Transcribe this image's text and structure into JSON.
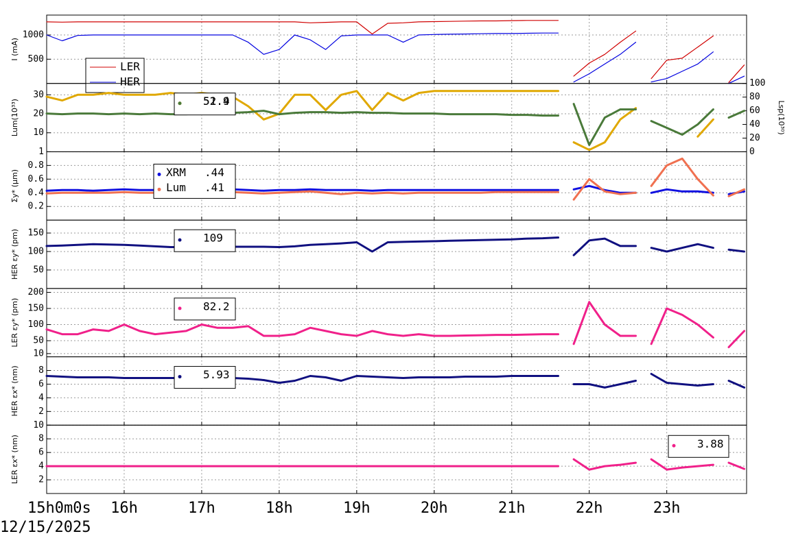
{
  "time_axis": {
    "xlim": [
      15,
      24.03
    ],
    "date": "12/15/2025",
    "xticks": [
      {
        "value": 15,
        "label": "15h0m0s"
      },
      {
        "value": 16,
        "label": "16h"
      },
      {
        "value": 17,
        "label": "17h"
      },
      {
        "value": 18,
        "label": "18h"
      },
      {
        "value": 19,
        "label": "19h"
      },
      {
        "value": 20,
        "label": "20h"
      },
      {
        "value": 21,
        "label": "21h"
      },
      {
        "value": 22,
        "label": "22h"
      },
      {
        "value": 23,
        "label": "23h"
      }
    ]
  },
  "chart_data": [
    {
      "type": "line",
      "ylabel": "I (mA)",
      "ylim": [
        0,
        1410
      ],
      "yticks": [
        500,
        1000
      ],
      "grid": true,
      "x": [
        15.0,
        15.2,
        15.4,
        15.6,
        15.8,
        16.0,
        16.2,
        16.4,
        16.6,
        16.8,
        17.0,
        17.2,
        17.4,
        17.6,
        17.8,
        18.0,
        18.2,
        18.4,
        18.6,
        18.8,
        19.0,
        19.2,
        19.4,
        19.6,
        19.8,
        20.0,
        20.2,
        20.4,
        20.6,
        20.8,
        21.0,
        21.2,
        21.4,
        21.6,
        21.7,
        21.8,
        22.0,
        22.2,
        22.4,
        22.6,
        22.7,
        22.8,
        23.0,
        23.2,
        23.4,
        23.6,
        23.7,
        23.8,
        24.0
      ],
      "series": [
        {
          "name": "LER",
          "color": "#d00000",
          "values": [
            1270,
            1265,
            1270,
            1270,
            1270,
            1270,
            1270,
            1270,
            1270,
            1270,
            1270,
            1270,
            1270,
            1270,
            1270,
            1270,
            1270,
            1250,
            1260,
            1270,
            1270,
            1020,
            1240,
            1250,
            1270,
            1275,
            1280,
            1285,
            1290,
            1290,
            1295,
            1300,
            1300,
            1300,
            null,
            150,
            420,
            600,
            850,
            1080,
            null,
            100,
            480,
            520,
            750,
            980,
            null,
            20,
            380
          ]
        },
        {
          "name": "HER",
          "color": "#0000e0",
          "values": [
            1000,
            880,
            990,
            1000,
            1000,
            1000,
            1000,
            1000,
            1000,
            1000,
            1000,
            1000,
            1000,
            850,
            600,
            700,
            1000,
            900,
            700,
            980,
            1000,
            1000,
            1000,
            850,
            1000,
            1010,
            1015,
            1020,
            1025,
            1030,
            1030,
            1035,
            1040,
            1040,
            null,
            30,
            200,
            400,
            600,
            850,
            null,
            30,
            100,
            250,
            400,
            650,
            null,
            0,
            150
          ]
        }
      ]
    },
    {
      "type": "scatter",
      "ylabel": "Lum(10³³)",
      "y2label": "Lsp(10³⁰)",
      "ylim": [
        0,
        36
      ],
      "yticks": [
        10,
        20,
        30
      ],
      "y2lim": [
        0,
        100
      ],
      "y2ticks": [
        0,
        20,
        40,
        60,
        80,
        100
      ],
      "grid": true,
      "x": [
        15.0,
        15.2,
        15.4,
        15.6,
        15.8,
        16.0,
        16.2,
        16.4,
        16.6,
        16.8,
        17.0,
        17.2,
        17.4,
        17.6,
        17.8,
        18.0,
        18.2,
        18.4,
        18.6,
        18.8,
        19.0,
        19.2,
        19.4,
        19.6,
        19.8,
        20.0,
        20.2,
        20.4,
        20.6,
        20.8,
        21.0,
        21.2,
        21.4,
        21.6,
        21.7,
        21.8,
        22.0,
        22.2,
        22.4,
        22.6,
        22.7,
        22.8,
        23.0,
        23.2,
        23.4,
        23.6,
        23.7,
        23.8,
        24.0
      ],
      "series": [
        {
          "legend_value": "52.9",
          "color": "#e0a800",
          "values": [
            29,
            27,
            30,
            30,
            31,
            30,
            30,
            30,
            31,
            30,
            31,
            30,
            29,
            24,
            17,
            20,
            30,
            30,
            22,
            30,
            32,
            22,
            31,
            27,
            31,
            32,
            32,
            32,
            32,
            32,
            32,
            32,
            32,
            32,
            null,
            5,
            1,
            5,
            17,
            23,
            null,
            null,
            null,
            null,
            8,
            17,
            null,
            null,
            null
          ]
        },
        {
          "legend_value": "51.4",
          "color": "#4a7a3a",
          "axis": "y2",
          "values": [
            56,
            55,
            56,
            56,
            55,
            56,
            55,
            56,
            55,
            55,
            56,
            56,
            57,
            58,
            60,
            55,
            57,
            58,
            58,
            57,
            58,
            57,
            57,
            56,
            56,
            56,
            55,
            55,
            55,
            55,
            54,
            54,
            53,
            53,
            null,
            70,
            10,
            50,
            62,
            62,
            null,
            45,
            35,
            25,
            40,
            62,
            null,
            50,
            60
          ]
        }
      ]
    },
    {
      "type": "scatter",
      "ylabel": "Σy* (μm)",
      "ylim": [
        0,
        1
      ],
      "yticks": [
        0.2,
        0.4,
        0.6,
        0.8,
        1
      ],
      "grid": true,
      "x": [
        15.0,
        15.2,
        15.4,
        15.6,
        15.8,
        16.0,
        16.2,
        16.4,
        16.6,
        16.8,
        17.0,
        17.2,
        17.4,
        17.6,
        17.8,
        18.0,
        18.2,
        18.4,
        18.6,
        18.8,
        19.0,
        19.2,
        19.4,
        19.6,
        19.8,
        20.0,
        20.2,
        20.4,
        20.6,
        20.8,
        21.0,
        21.2,
        21.4,
        21.6,
        21.7,
        21.8,
        22.0,
        22.2,
        22.4,
        22.6,
        22.7,
        22.8,
        23.0,
        23.2,
        23.4,
        23.6,
        23.7,
        23.8,
        24.0
      ],
      "series": [
        {
          "name": "XRM",
          "legend_value": ".44",
          "color": "#1010e0",
          "values": [
            0.43,
            0.44,
            0.44,
            0.43,
            0.44,
            0.45,
            0.44,
            0.44,
            0.43,
            0.44,
            0.44,
            0.44,
            0.45,
            0.44,
            0.43,
            0.44,
            0.44,
            0.45,
            0.44,
            0.44,
            0.44,
            0.43,
            0.44,
            0.44,
            0.44,
            0.44,
            0.44,
            0.44,
            0.44,
            0.44,
            0.44,
            0.44,
            0.44,
            0.44,
            null,
            0.45,
            0.5,
            0.44,
            0.4,
            0.4,
            null,
            0.4,
            0.45,
            0.42,
            0.42,
            0.4,
            null,
            0.38,
            0.42
          ]
        },
        {
          "name": "Lum",
          "legend_value": ".41",
          "color": "#f07050",
          "values": [
            0.39,
            0.4,
            0.4,
            0.4,
            0.4,
            0.41,
            0.4,
            0.4,
            0.4,
            0.4,
            0.4,
            0.4,
            0.41,
            0.4,
            0.39,
            0.4,
            0.41,
            0.42,
            0.4,
            0.38,
            0.4,
            0.39,
            0.4,
            0.39,
            0.4,
            0.4,
            0.4,
            0.4,
            0.4,
            0.41,
            0.41,
            0.41,
            0.41,
            0.41,
            null,
            0.3,
            0.6,
            0.42,
            0.38,
            0.4,
            null,
            0.5,
            0.8,
            0.9,
            0.6,
            0.36,
            null,
            0.35,
            0.45
          ]
        }
      ]
    },
    {
      "type": "scatter",
      "ylabel": "HER εy* (pm)",
      "ylim": [
        0,
        185
      ],
      "yticks": [
        50,
        100,
        150
      ],
      "grid": true,
      "x": [
        15.0,
        15.2,
        15.4,
        15.6,
        15.8,
        16.0,
        16.2,
        16.4,
        16.6,
        16.8,
        17.0,
        17.2,
        17.4,
        17.6,
        17.8,
        18.0,
        18.2,
        18.4,
        18.6,
        18.8,
        19.0,
        19.2,
        19.4,
        19.6,
        19.8,
        20.0,
        20.2,
        20.4,
        20.6,
        20.8,
        21.0,
        21.2,
        21.4,
        21.6,
        21.7,
        21.8,
        22.0,
        22.2,
        22.4,
        22.6,
        22.7,
        22.8,
        23.0,
        23.2,
        23.4,
        23.6,
        23.7,
        23.8,
        24.0
      ],
      "series": [
        {
          "legend_value": "109",
          "color": "#101080",
          "values": [
            115,
            116,
            118,
            120,
            119,
            118,
            116,
            114,
            112,
            112,
            112,
            112,
            113,
            113,
            113,
            112,
            114,
            118,
            120,
            122,
            125,
            100,
            125,
            126,
            127,
            128,
            129,
            130,
            131,
            132,
            133,
            135,
            136,
            138,
            null,
            90,
            130,
            135,
            115,
            115,
            null,
            110,
            100,
            110,
            120,
            110,
            null,
            105,
            100
          ]
        }
      ]
    },
    {
      "type": "scatter",
      "ylabel": "LER εy* (pm)",
      "ylim": [
        0,
        212
      ],
      "yticks": [
        10,
        50,
        100,
        150,
        200
      ],
      "grid": true,
      "x": [
        15.0,
        15.2,
        15.4,
        15.6,
        15.8,
        16.0,
        16.2,
        16.4,
        16.6,
        16.8,
        17.0,
        17.2,
        17.4,
        17.6,
        17.8,
        18.0,
        18.2,
        18.4,
        18.6,
        18.8,
        19.0,
        19.2,
        19.4,
        19.6,
        19.8,
        20.0,
        20.2,
        20.4,
        20.6,
        20.8,
        21.0,
        21.2,
        21.4,
        21.6,
        21.7,
        21.8,
        22.0,
        22.2,
        22.4,
        22.6,
        22.7,
        22.8,
        23.0,
        23.2,
        23.4,
        23.6,
        23.7,
        23.8,
        24.0
      ],
      "series": [
        {
          "legend_value": "82.2",
          "color": "#f0208a",
          "values": [
            85,
            70,
            70,
            85,
            80,
            100,
            80,
            70,
            75,
            80,
            100,
            90,
            90,
            95,
            65,
            65,
            70,
            90,
            80,
            70,
            65,
            80,
            70,
            65,
            70,
            65,
            65,
            66,
            67,
            68,
            68,
            69,
            70,
            70,
            null,
            40,
            170,
            100,
            65,
            65,
            null,
            40,
            150,
            130,
            100,
            60,
            null,
            30,
            80
          ]
        }
      ]
    },
    {
      "type": "scatter",
      "ylabel": "HER εx* (nm)",
      "ylim": [
        0,
        10
      ],
      "yticks": [
        2,
        4,
        6,
        8
      ],
      "grid": true,
      "x": [
        15.0,
        15.2,
        15.4,
        15.6,
        15.8,
        16.0,
        16.2,
        16.4,
        16.6,
        16.8,
        17.0,
        17.2,
        17.4,
        17.6,
        17.8,
        18.0,
        18.2,
        18.4,
        18.6,
        18.8,
        19.0,
        19.2,
        19.4,
        19.6,
        19.8,
        20.0,
        20.2,
        20.4,
        20.6,
        20.8,
        21.0,
        21.2,
        21.4,
        21.6,
        21.7,
        21.8,
        22.0,
        22.2,
        22.4,
        22.6,
        22.7,
        22.8,
        23.0,
        23.2,
        23.4,
        23.6,
        23.7,
        23.8,
        24.0
      ],
      "series": [
        {
          "legend_value": "5.93",
          "color": "#101080",
          "values": [
            7.2,
            7.1,
            7.0,
            7.0,
            7.0,
            6.9,
            6.9,
            6.9,
            6.9,
            6.9,
            6.9,
            6.9,
            6.9,
            6.8,
            6.6,
            6.2,
            6.5,
            7.2,
            7.0,
            6.5,
            7.2,
            7.1,
            7.0,
            6.9,
            7.0,
            7.0,
            7.0,
            7.1,
            7.1,
            7.1,
            7.2,
            7.2,
            7.2,
            7.2,
            null,
            6.0,
            6.0,
            5.5,
            6.0,
            6.5,
            null,
            7.5,
            6.2,
            6.0,
            5.8,
            6.0,
            null,
            6.5,
            5.5
          ]
        }
      ]
    },
    {
      "type": "scatter",
      "ylabel": "LER εx* (nm)",
      "ylim": [
        0,
        10
      ],
      "yticks": [
        2,
        4,
        6,
        8,
        10
      ],
      "grid": true,
      "x": [
        15.0,
        15.2,
        15.4,
        15.6,
        15.8,
        16.0,
        16.2,
        16.4,
        16.6,
        16.8,
        17.0,
        17.2,
        17.4,
        17.6,
        17.8,
        18.0,
        18.2,
        18.4,
        18.6,
        18.8,
        19.0,
        19.2,
        19.4,
        19.6,
        19.8,
        20.0,
        20.2,
        20.4,
        20.6,
        20.8,
        21.0,
        21.2,
        21.4,
        21.6,
        21.7,
        21.8,
        22.0,
        22.2,
        22.4,
        22.6,
        22.7,
        22.8,
        23.0,
        23.2,
        23.4,
        23.6,
        23.7,
        23.8,
        24.0
      ],
      "series": [
        {
          "legend_value": "3.88",
          "color": "#f0208a",
          "values": [
            4,
            4,
            4,
            4,
            4,
            4,
            4,
            4,
            4,
            4,
            4,
            4,
            4,
            4,
            4,
            4,
            4,
            4,
            4,
            4,
            4,
            4,
            4,
            4,
            4,
            4,
            4,
            4,
            4,
            4,
            4,
            4,
            4,
            4,
            null,
            5,
            3.5,
            4.0,
            4.2,
            4.5,
            null,
            5,
            3.5,
            3.8,
            4.0,
            4.2,
            null,
            4.5,
            3.6
          ]
        }
      ]
    }
  ]
}
